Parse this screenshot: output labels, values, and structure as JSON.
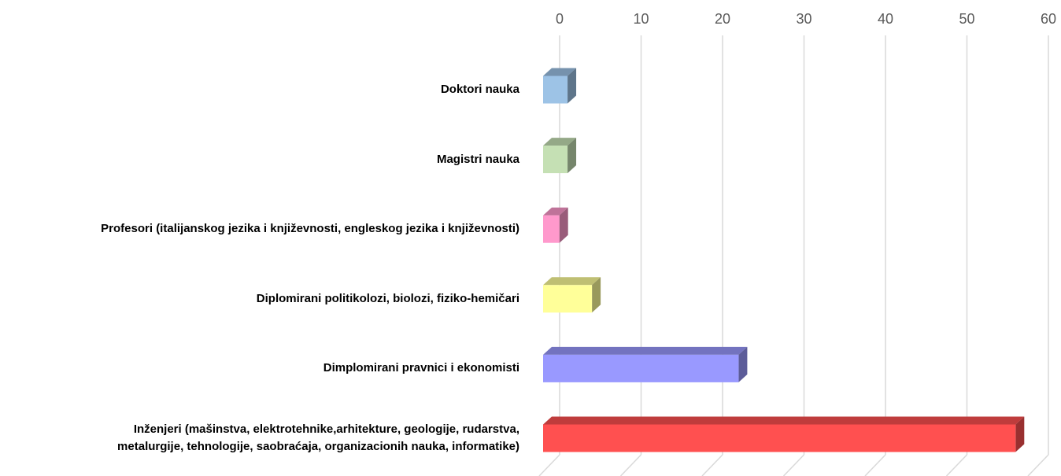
{
  "chart_data": {
    "type": "bar3d_horizontal",
    "categories": [
      "Doktori nauka",
      "Magistri nauka",
      "Profesori (italijanskog jezika i književnosti, engleskog jezika i književnosti)",
      "Diplomirani politikolozi, biolozi, fiziko-hemičari",
      "Dimplomirani pravnici i ekonomisti",
      "Inženjeri (mašinstva, elektrotehnike,arhitekture, geologije, rudarstva,\nmetalurgije, tehnologije, saobraćaja, organizacionih nauka, informatike)"
    ],
    "values": [
      3,
      3,
      2,
      6,
      24,
      58
    ],
    "colors": [
      "#9dc3e6",
      "#c5e0b4",
      "#ff99cc",
      "#ffff99",
      "#9999ff",
      "#ff5050"
    ],
    "xlim": [
      0,
      60
    ],
    "xticks": [
      0,
      10,
      20,
      30,
      40,
      50,
      60
    ],
    "grid": true
  }
}
